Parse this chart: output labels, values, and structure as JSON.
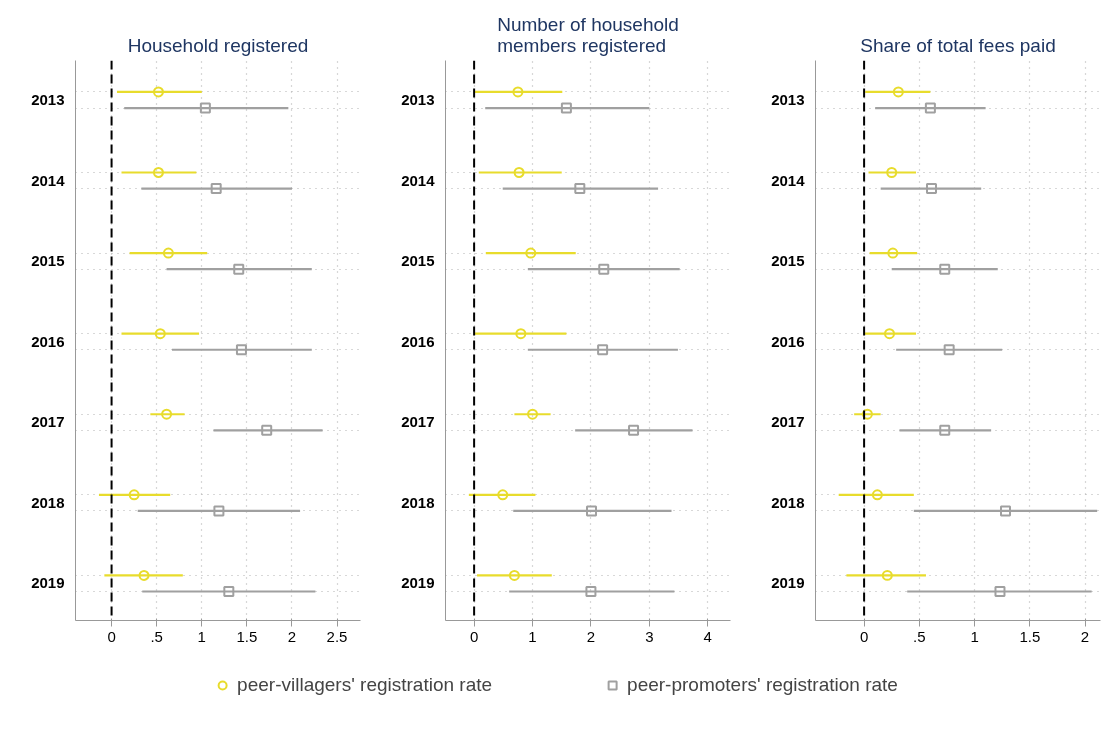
{
  "chart_data": [
    {
      "type": "scatter",
      "orientation": "horizontal",
      "title": "Household registered",
      "categories": [
        "2013",
        "2014",
        "2015",
        "2016",
        "2017",
        "2018",
        "2019"
      ],
      "xlim": [
        -0.4,
        2.76
      ],
      "xticks": [
        0,
        {
          "value": 0.5,
          "label": ".5"
        },
        1,
        1.5,
        2,
        2.5
      ],
      "grid": true,
      "legend": "bottom",
      "ref_lines": [
        {
          "axis": "x",
          "value": 0,
          "color": "#000000",
          "line_style": "dashed"
        }
      ],
      "series": [
        {
          "name": "peer-villagers' registration rate",
          "color": "#e8dc2c",
          "marker": "circle",
          "values": [
            0.52,
            0.52,
            0.63,
            0.54,
            0.61,
            0.25,
            0.36
          ],
          "errors": [
            [
              0.06,
              1.0
            ],
            [
              0.11,
              0.94
            ],
            [
              0.2,
              1.06
            ],
            [
              0.11,
              0.97
            ],
            [
              0.43,
              0.81
            ],
            [
              -0.14,
              0.65
            ],
            [
              -0.08,
              0.79
            ]
          ]
        },
        {
          "name": "peer-promoters' registration rate",
          "color": "#a0a0a0",
          "marker": "square",
          "values": [
            1.04,
            1.16,
            1.41,
            1.44,
            1.72,
            1.19,
            1.3
          ],
          "errors": [
            [
              0.14,
              1.96
            ],
            [
              0.33,
              2.0
            ],
            [
              0.61,
              2.22
            ],
            [
              0.67,
              2.22
            ],
            [
              1.13,
              2.34
            ],
            [
              0.29,
              2.09
            ],
            [
              0.34,
              2.26
            ]
          ]
        }
      ]
    },
    {
      "type": "scatter",
      "orientation": "horizontal",
      "title": "Number of household\nmembers registered",
      "categories": [
        "2013",
        "2014",
        "2015",
        "2016",
        "2017",
        "2018",
        "2019"
      ],
      "xlim": [
        -0.49,
        4.39
      ],
      "xticks": [
        0,
        1,
        2,
        3,
        4
      ],
      "grid": true,
      "ref_lines": [
        {
          "axis": "x",
          "value": 0,
          "color": "#000000",
          "line_style": "dashed"
        }
      ],
      "series": [
        {
          "color": "#e8dc2c",
          "marker": "circle",
          "values": [
            0.75,
            0.77,
            0.97,
            0.8,
            1.0,
            0.49,
            0.69
          ],
          "errors": [
            [
              0.0,
              1.51
            ],
            [
              0.08,
              1.5
            ],
            [
              0.2,
              1.74
            ],
            [
              0.01,
              1.58
            ],
            [
              0.69,
              1.31
            ],
            [
              -0.09,
              1.05
            ],
            [
              0.05,
              1.33
            ]
          ]
        },
        {
          "color": "#a0a0a0",
          "marker": "square",
          "values": [
            1.58,
            1.81,
            2.22,
            2.2,
            2.73,
            2.01,
            2.0
          ],
          "errors": [
            [
              0.19,
              3.0
            ],
            [
              0.49,
              3.15
            ],
            [
              0.92,
              3.52
            ],
            [
              0.92,
              3.49
            ],
            [
              1.73,
              3.74
            ],
            [
              0.67,
              3.38
            ],
            [
              0.6,
              3.43
            ]
          ]
        }
      ]
    },
    {
      "type": "scatter",
      "orientation": "horizontal",
      "title": "Share of total fees paid",
      "categories": [
        "2013",
        "2014",
        "2015",
        "2016",
        "2017",
        "2018",
        "2019"
      ],
      "xlim": [
        -0.44,
        2.14
      ],
      "xticks": [
        0,
        {
          "value": 0.5,
          "label": ".5"
        },
        1,
        1.5,
        2
      ],
      "grid": true,
      "ref_lines": [
        {
          "axis": "x",
          "value": 0,
          "color": "#000000",
          "line_style": "dashed"
        }
      ],
      "series": [
        {
          "color": "#e8dc2c",
          "marker": "circle",
          "values": [
            0.31,
            0.25,
            0.26,
            0.23,
            0.03,
            0.12,
            0.21
          ],
          "errors": [
            [
              0.01,
              0.6
            ],
            [
              0.04,
              0.47
            ],
            [
              0.05,
              0.48
            ],
            [
              0.0,
              0.47
            ],
            [
              -0.09,
              0.15
            ],
            [
              -0.23,
              0.45
            ],
            [
              -0.16,
              0.56
            ]
          ]
        },
        {
          "color": "#a0a0a0",
          "marker": "square",
          "values": [
            0.6,
            0.61,
            0.73,
            0.77,
            0.73,
            1.28,
            1.23
          ],
          "errors": [
            [
              0.1,
              1.1
            ],
            [
              0.15,
              1.06
            ],
            [
              0.25,
              1.21
            ],
            [
              0.29,
              1.25
            ],
            [
              0.32,
              1.15
            ],
            [
              0.45,
              2.11
            ],
            [
              0.39,
              2.06
            ]
          ]
        }
      ]
    }
  ]
}
